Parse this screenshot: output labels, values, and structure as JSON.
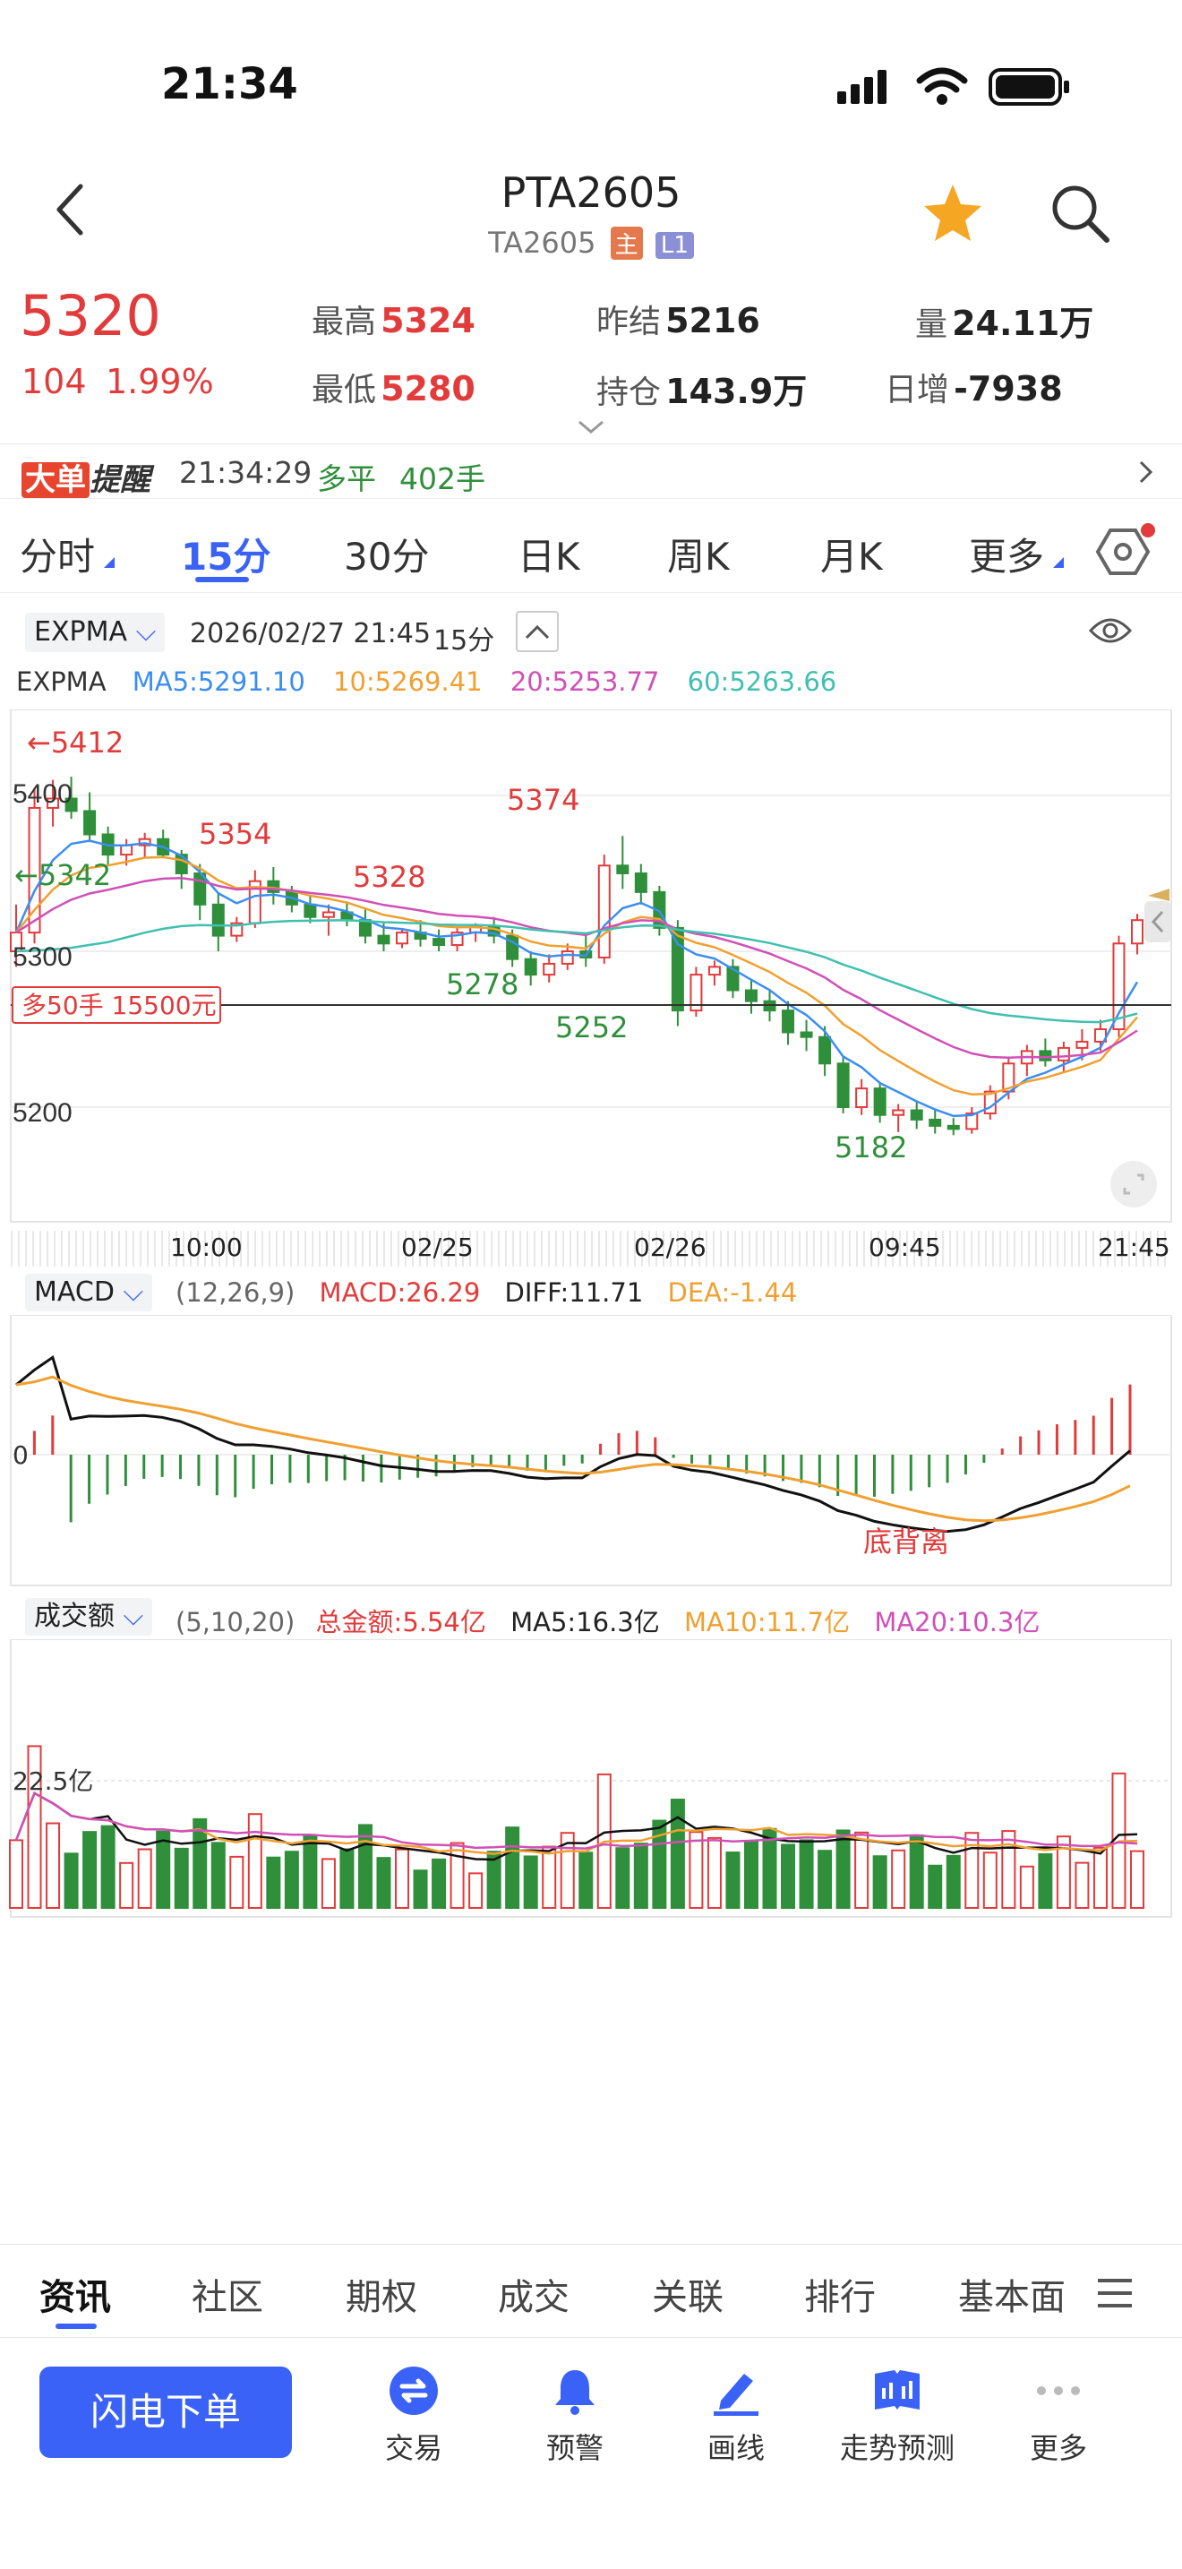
{
  "status_bar": {
    "time": "21:34"
  },
  "header": {
    "title": "PTA2605",
    "subtitle": "TA2605",
    "badge_main": "主",
    "badge_level": "L1"
  },
  "quote": {
    "price": "5320",
    "change": "104",
    "change_pct": "1.99%",
    "high_label": "最高",
    "high": "5324",
    "low_label": "最低",
    "low": "5280",
    "prev_settle_label": "昨结",
    "prev_settle": "5216",
    "open_interest_label": "持仓",
    "open_interest": "143.9万",
    "volume_label": "量",
    "volume": "24.11万",
    "daily_inc_label": "日增",
    "daily_inc": "-7938"
  },
  "alert": {
    "tag_part1": "大单",
    "tag_part2": "提醒",
    "time": "21:34:29",
    "type": "多平",
    "qty": "402手"
  },
  "periods": [
    "分时",
    "15分",
    "30分",
    "日K",
    "周K",
    "月K",
    "更多"
  ],
  "active_period": "15分",
  "chart_header": {
    "indicator": "EXPMA",
    "datetime": "2026/02/27 21:45",
    "period": "15分"
  },
  "ma_legend": {
    "name": "EXPMA",
    "ma5": "MA5:5291.10",
    "ma10": "10:5269.41",
    "ma20": "20:5253.77",
    "ma60": "60:5263.66"
  },
  "colors": {
    "up": "#e23b3b",
    "down": "#2f8f3a",
    "ma5": "#3b8ef0",
    "ma10": "#f0a030",
    "ma20": "#d050b8",
    "ma60": "#40c0b0",
    "accent": "#3b62f6"
  },
  "main_chart": {
    "y_ticks": [
      "5400",
      "5300",
      "5200"
    ],
    "x_ticks": [
      "10:00",
      "02/25",
      "02/26",
      "09:45",
      "21:45"
    ],
    "annotations": {
      "a5412": "←5412",
      "a5342": "←5342",
      "a5374": "5374",
      "a5354": "5354",
      "a5328": "5328",
      "a5278": "5278",
      "a5252": "5252",
      "a5182": "5182"
    },
    "position_tag": "多50手 15500元"
  },
  "macd": {
    "name": "MACD",
    "params": "(12,26,9)",
    "macd": "MACD:26.29",
    "diff": "DIFF:11.71",
    "dea": "DEA:-1.44",
    "zero_label": "0",
    "divergence": "底背离"
  },
  "turnover": {
    "name": "成交额",
    "params": "(5,10,20)",
    "total": "总金额:5.54亿",
    "ma5": "MA5:16.3亿",
    "ma10": "MA10:11.7亿",
    "ma20": "MA20:10.3亿",
    "y_tick": "22.5亿"
  },
  "bottom_tabs": [
    "资讯",
    "社区",
    "期权",
    "成交",
    "关联",
    "排行",
    "基本面"
  ],
  "active_bottom_tab": "资讯",
  "toolbar": {
    "order_button": "闪电下单",
    "items": [
      "交易",
      "预警",
      "画线",
      "走势预测",
      "更多"
    ]
  },
  "chart_data": {
    "type": "candlestick",
    "interval": "15分",
    "ohlc": [
      [
        5300,
        5330,
        5290,
        5312
      ],
      [
        5312,
        5405,
        5305,
        5392
      ],
      [
        5392,
        5410,
        5380,
        5398
      ],
      [
        5398,
        5412,
        5385,
        5390
      ],
      [
        5390,
        5402,
        5370,
        5375
      ],
      [
        5375,
        5380,
        5355,
        5362
      ],
      [
        5362,
        5372,
        5355,
        5368
      ],
      [
        5368,
        5376,
        5360,
        5372
      ],
      [
        5372,
        5378,
        5360,
        5362
      ],
      [
        5362,
        5365,
        5340,
        5350
      ],
      [
        5350,
        5356,
        5320,
        5330
      ],
      [
        5330,
        5338,
        5300,
        5310
      ],
      [
        5310,
        5322,
        5306,
        5318
      ],
      [
        5318,
        5352,
        5315,
        5345
      ],
      [
        5345,
        5354,
        5330,
        5338
      ],
      [
        5338,
        5342,
        5325,
        5330
      ],
      [
        5330,
        5336,
        5318,
        5322
      ],
      [
        5322,
        5330,
        5310,
        5325
      ],
      [
        5325,
        5332,
        5316,
        5320
      ],
      [
        5320,
        5328,
        5305,
        5310
      ],
      [
        5310,
        5318,
        5300,
        5305
      ],
      [
        5305,
        5315,
        5302,
        5312
      ],
      [
        5312,
        5320,
        5303,
        5308
      ],
      [
        5308,
        5314,
        5300,
        5304
      ],
      [
        5304,
        5315,
        5300,
        5312
      ],
      [
        5312,
        5318,
        5306,
        5316
      ],
      [
        5316,
        5322,
        5305,
        5310
      ],
      [
        5310,
        5314,
        5290,
        5295
      ],
      [
        5295,
        5300,
        5278,
        5285
      ],
      [
        5285,
        5298,
        5280,
        5292
      ],
      [
        5292,
        5305,
        5288,
        5300
      ],
      [
        5300,
        5312,
        5290,
        5296
      ],
      [
        5296,
        5362,
        5292,
        5355
      ],
      [
        5355,
        5374,
        5340,
        5350
      ],
      [
        5350,
        5356,
        5330,
        5338
      ],
      [
        5338,
        5342,
        5310,
        5315
      ],
      [
        5315,
        5320,
        5252,
        5262
      ],
      [
        5262,
        5290,
        5258,
        5285
      ],
      [
        5285,
        5294,
        5278,
        5290
      ],
      [
        5290,
        5295,
        5270,
        5275
      ],
      [
        5275,
        5282,
        5260,
        5268
      ],
      [
        5268,
        5275,
        5255,
        5262
      ],
      [
        5262,
        5268,
        5240,
        5248
      ],
      [
        5248,
        5256,
        5236,
        5245
      ],
      [
        5245,
        5252,
        5220,
        5228
      ],
      [
        5228,
        5232,
        5196,
        5200
      ],
      [
        5200,
        5218,
        5195,
        5212
      ],
      [
        5212,
        5215,
        5190,
        5195
      ],
      [
        5195,
        5202,
        5184,
        5198
      ],
      [
        5198,
        5204,
        5186,
        5192
      ],
      [
        5192,
        5198,
        5183,
        5188
      ],
      [
        5188,
        5193,
        5182,
        5186
      ],
      [
        5186,
        5200,
        5183,
        5196
      ],
      [
        5196,
        5214,
        5192,
        5210
      ],
      [
        5210,
        5232,
        5205,
        5228
      ],
      [
        5228,
        5240,
        5220,
        5236
      ],
      [
        5236,
        5244,
        5226,
        5230
      ],
      [
        5230,
        5242,
        5222,
        5238
      ],
      [
        5238,
        5250,
        5230,
        5242
      ],
      [
        5242,
        5256,
        5236,
        5250
      ],
      [
        5250,
        5310,
        5245,
        5305
      ],
      [
        5305,
        5324,
        5298,
        5320
      ]
    ]
  }
}
